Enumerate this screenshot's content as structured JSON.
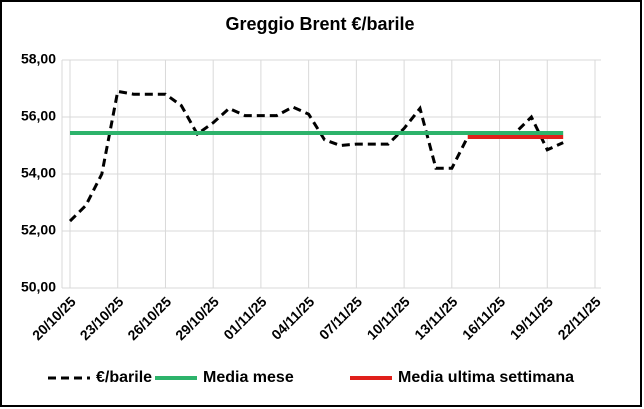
{
  "chart_data": {
    "type": "line",
    "title": "Greggio Brent €/barile",
    "categories": [
      "20/10/25",
      null,
      null,
      "23/10/25",
      null,
      null,
      "26/10/25",
      null,
      null,
      "29/10/25",
      null,
      null,
      "01/11/25",
      null,
      null,
      "04/11/25",
      null,
      null,
      "07/11/25",
      null,
      null,
      "10/11/25",
      null,
      null,
      "13/11/25",
      null,
      null,
      "16/11/25",
      null,
      null,
      "19/11/25",
      null,
      null,
      "22/11/25"
    ],
    "series": [
      {
        "name": "€/barile",
        "color": "#000000",
        "dash": true,
        "values": [
          52.35,
          52.9,
          54.0,
          56.9,
          56.8,
          56.8,
          56.8,
          56.4,
          55.4,
          55.8,
          56.3,
          56.05,
          56.05,
          56.05,
          56.35,
          56.1,
          55.2,
          55.0,
          55.05,
          55.05,
          55.05,
          55.6,
          56.3,
          54.2,
          54.2,
          55.3,
          55.3,
          55.3,
          55.45,
          56.0,
          54.85,
          55.1,
          null,
          null
        ]
      },
      {
        "name": "Media mese",
        "color": "#2db36b",
        "dash": false,
        "values": [
          55.44,
          55.44,
          55.44,
          55.44,
          55.44,
          55.44,
          55.44,
          55.44,
          55.44,
          55.44,
          55.44,
          55.44,
          55.44,
          55.44,
          55.44,
          55.44,
          55.44,
          55.44,
          55.44,
          55.44,
          55.44,
          55.44,
          55.44,
          55.44,
          55.44,
          55.44,
          55.44,
          55.44,
          55.44,
          55.44,
          55.44,
          55.44,
          null,
          null
        ]
      },
      {
        "name": "Media ultima settimana",
        "color": "#e0201b",
        "dash": false,
        "values": [
          null,
          null,
          null,
          null,
          null,
          null,
          null,
          null,
          null,
          null,
          null,
          null,
          null,
          null,
          null,
          null,
          null,
          null,
          null,
          null,
          null,
          null,
          null,
          null,
          null,
          55.3,
          55.3,
          55.3,
          55.3,
          55.3,
          55.3,
          55.3,
          null,
          null
        ]
      }
    ],
    "ylim": [
      50,
      58
    ],
    "yticks": [
      {
        "value": 50,
        "label": "50,00"
      },
      {
        "value": 52,
        "label": "52,00"
      },
      {
        "value": 54,
        "label": "54,00"
      },
      {
        "value": 56,
        "label": "56,00"
      },
      {
        "value": 58,
        "label": "58,00"
      }
    ],
    "grid": true,
    "legend": "bottom"
  }
}
